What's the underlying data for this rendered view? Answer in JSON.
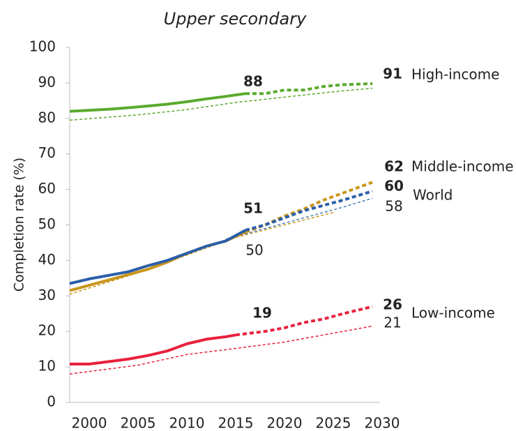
{
  "chart_data": {
    "type": "line",
    "title": "Upper secondary",
    "y_label": "Completion rate (%)",
    "xlim": [
      1998,
      2030
    ],
    "xticks": [
      2000,
      2005,
      2010,
      2015,
      2020,
      2025,
      2030
    ],
    "ylim": [
      0,
      100
    ],
    "yticks": [
      0,
      10,
      20,
      30,
      40,
      50,
      60,
      70,
      80,
      90,
      100
    ],
    "groups": [
      {
        "name": "High-income",
        "color": "#5aaa2e",
        "baseline_color": "#5aaa2e",
        "observed": {
          "x": [
            1998,
            2000,
            2002,
            2004,
            2006,
            2008,
            2010,
            2012,
            2014,
            2016
          ],
          "values": [
            82,
            82.3,
            82.6,
            83,
            83.5,
            84,
            84.7,
            85.5,
            86.2,
            87
          ]
        },
        "projection": {
          "x": [
            2016,
            2018,
            2020,
            2022,
            2024,
            2026,
            2029
          ],
          "values": [
            87,
            87,
            88,
            88,
            89,
            89.5,
            89.8
          ]
        },
        "baseline": {
          "x": [
            1998,
            2005,
            2010,
            2015,
            2020,
            2025,
            2029
          ],
          "values": [
            79.5,
            81,
            82.5,
            84.5,
            86,
            87.5,
            88.5
          ]
        }
      },
      {
        "name": "Middle-income",
        "color": "#c9961a",
        "baseline_color": "#c9961a",
        "observed": {
          "x": [
            1998,
            2000,
            2002,
            2004,
            2006,
            2008,
            2010,
            2012,
            2014,
            2016
          ],
          "values": [
            31.5,
            33,
            34.5,
            36,
            37.5,
            39.5,
            42,
            44,
            45.5,
            48
          ]
        },
        "projection": {
          "x": [
            2016,
            2018,
            2020,
            2022,
            2024,
            2026,
            2029
          ],
          "values": [
            48,
            50,
            52.5,
            54.5,
            57,
            59,
            62
          ]
        },
        "baseline": {
          "x": [
            1998,
            2005,
            2010,
            2015,
            2020,
            2025
          ],
          "values": [
            30.5,
            36.5,
            41.5,
            46.5,
            50,
            53.5
          ]
        }
      },
      {
        "name": "World",
        "color": "#2a5ea8",
        "baseline_color": "#4a7fb5",
        "observed": {
          "x": [
            1998,
            2000,
            2002,
            2004,
            2006,
            2008,
            2010,
            2012,
            2014,
            2016
          ],
          "values": [
            33.5,
            34.8,
            35.8,
            36.8,
            38.5,
            40,
            42,
            44,
            45.5,
            48.5
          ]
        },
        "projection": {
          "x": [
            2016,
            2018,
            2020,
            2022,
            2024,
            2026,
            2029
          ],
          "values": [
            48.5,
            50,
            52,
            54,
            55.5,
            57,
            59.5
          ]
        },
        "baseline": {
          "x": [
            2014,
            2018,
            2022,
            2026,
            2029
          ],
          "values": [
            46,
            49,
            52,
            55,
            57.5
          ]
        }
      },
      {
        "name": "Low-income",
        "color": "#e8203c",
        "baseline_color": "#e8203c",
        "observed": {
          "x": [
            1998,
            2000,
            2002,
            2004,
            2006,
            2008,
            2010,
            2012,
            2014,
            2015
          ],
          "values": [
            10.8,
            10.8,
            11.5,
            12.2,
            13.2,
            14.5,
            16.5,
            17.8,
            18.5,
            19
          ]
        },
        "projection": {
          "x": [
            2015,
            2018,
            2020,
            2022,
            2024,
            2026,
            2029
          ],
          "values": [
            19,
            20,
            21,
            22.5,
            23.5,
            25,
            27
          ]
        },
        "baseline": {
          "x": [
            1998,
            2005,
            2010,
            2015,
            2020,
            2025,
            2029
          ],
          "values": [
            8,
            10.5,
            13.5,
            15.2,
            17,
            19.5,
            21.5
          ]
        }
      }
    ],
    "annotations": [
      "88",
      "91",
      "62",
      "51",
      "60",
      "58",
      "50",
      "19",
      "26",
      "21"
    ]
  }
}
